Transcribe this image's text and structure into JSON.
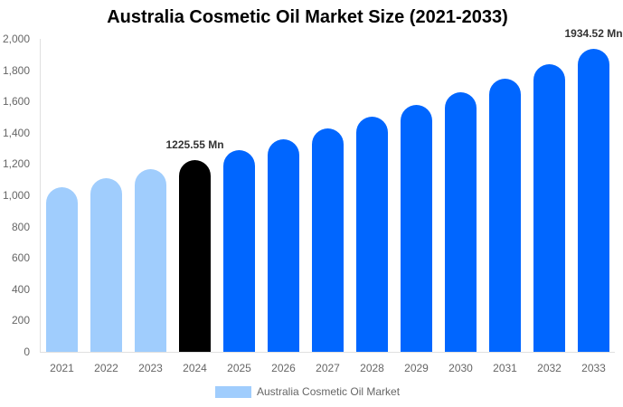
{
  "chart_data": {
    "type": "bar",
    "title": "Australia Cosmetic Oil Market Size (2021-2033)",
    "xlabel": "",
    "ylabel": "",
    "ylim": [
      0,
      2000
    ],
    "yticks": [
      "0",
      "200",
      "400",
      "600",
      "800",
      "1,000",
      "1,200",
      "1,400",
      "1,600",
      "1,800",
      "2,000"
    ],
    "grid": false,
    "legend_position": "bottom",
    "categories": [
      "2021",
      "2022",
      "2023",
      "2024",
      "2025",
      "2026",
      "2027",
      "2028",
      "2029",
      "2030",
      "2031",
      "2032",
      "2033"
    ],
    "series": [
      {
        "name": "Australia Cosmetic Oil Market",
        "values": [
          1053,
          1107,
          1165,
          1225.55,
          1289,
          1356,
          1427,
          1501,
          1579,
          1661,
          1747,
          1839,
          1934.52
        ]
      }
    ],
    "bar_colors": [
      "#a0cdfd",
      "#a0cdfd",
      "#a0cdfd",
      "#000000",
      "#0066ff",
      "#0066ff",
      "#0066ff",
      "#0066ff",
      "#0066ff",
      "#0066ff",
      "#0066ff",
      "#0066ff",
      "#0066ff"
    ],
    "annotations": [
      {
        "category": "2024",
        "text": "1225.55 Mn"
      },
      {
        "category": "2033",
        "text": "1934.52 Mn"
      }
    ]
  },
  "legend": {
    "label": "Australia Cosmetic Oil Market",
    "color": "#a0cdfd"
  }
}
